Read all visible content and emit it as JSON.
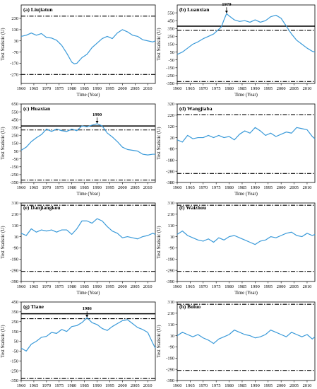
{
  "figure": {
    "xlabel": "Time (Year)",
    "ylabel": "Test Statistic (U)",
    "line_color": "#3a9ad9"
  },
  "chart_data": [
    {
      "type": "line",
      "panel": "a",
      "title": "(a) Liujiatun",
      "xlabel": "Time (Year)",
      "ylabel": "Test Statistic (U)",
      "xlim": [
        1960,
        2013
      ],
      "ylim": [
        -350,
        350
      ],
      "yticks": [
        -270,
        -170,
        -70,
        30,
        130,
        230
      ],
      "xticks": [
        1960,
        1965,
        1970,
        1975,
        1980,
        1985,
        1990,
        1995,
        2000,
        2005,
        2010
      ],
      "thresholds": {
        "solid": null,
        "dashdot": [
          250,
          -270
        ]
      },
      "annotation": null,
      "x": [
        1960,
        1962,
        1964,
        1966,
        1968,
        1970,
        1972,
        1974,
        1976,
        1978,
        1980,
        1981,
        1982,
        1984,
        1986,
        1988,
        1990,
        1992,
        1994,
        1996,
        1998,
        2000,
        2002,
        2004,
        2006,
        2008,
        2010,
        2012,
        2013
      ],
      "values": [
        70,
        80,
        100,
        80,
        95,
        60,
        55,
        35,
        -10,
        -80,
        -160,
        -175,
        -170,
        -120,
        -90,
        -30,
        10,
        50,
        70,
        50,
        100,
        130,
        110,
        80,
        70,
        40,
        30,
        20,
        30
      ]
    },
    {
      "type": "line",
      "panel": "b",
      "title": "(b) Luanxian",
      "xlabel": "Time (Year)",
      "ylabel": "Test Statistic (U)",
      "xlim": [
        1960,
        2013
      ],
      "ylim": [
        -350,
        650
      ],
      "yticks": [
        -350,
        -250,
        -150,
        -50,
        50,
        150,
        250,
        350,
        450,
        550
      ],
      "xticks": [
        1960,
        1965,
        1970,
        1975,
        1980,
        1985,
        1990,
        1995,
        2000,
        2005,
        2010
      ],
      "thresholds": {
        "solid": 380,
        "dashdot": [
          326,
          -326
        ]
      },
      "annotation": {
        "label": "1979",
        "x": 1979,
        "y": 540
      },
      "x": [
        1960,
        1962,
        1964,
        1966,
        1968,
        1970,
        1972,
        1974,
        1976,
        1977,
        1978,
        1979,
        1980,
        1982,
        1984,
        1986,
        1988,
        1990,
        1992,
        1994,
        1996,
        1998,
        2000,
        2002,
        2004,
        2006,
        2008,
        2010,
        2012,
        2013
      ],
      "values": [
        20,
        50,
        100,
        150,
        180,
        220,
        250,
        280,
        340,
        370,
        460,
        540,
        510,
        460,
        440,
        450,
        430,
        460,
        430,
        450,
        500,
        520,
        480,
        380,
        280,
        200,
        150,
        100,
        60,
        50
      ]
    },
    {
      "type": "line",
      "panel": "c",
      "title": "(c) Huaxian",
      "xlabel": "Time (Year)",
      "ylabel": "Test Statistic (U)",
      "xlim": [
        1960,
        2013
      ],
      "ylim": [
        -350,
        650
      ],
      "yticks": [
        -350,
        -250,
        -150,
        -50,
        50,
        150,
        250,
        350,
        450,
        550,
        650
      ],
      "xticks": [
        1960,
        1965,
        1970,
        1975,
        1980,
        1985,
        1990,
        1995,
        2000,
        2005,
        2010
      ],
      "thresholds": {
        "solid": 370,
        "dashdot": [
          319,
          -319
        ]
      },
      "annotation": {
        "label": "1990",
        "x": 1990,
        "y": 398
      },
      "x": [
        1960,
        1962,
        1964,
        1966,
        1968,
        1970,
        1972,
        1974,
        1976,
        1978,
        1980,
        1982,
        1984,
        1986,
        1988,
        1990,
        1992,
        1994,
        1996,
        1998,
        2000,
        2002,
        2004,
        2006,
        2008,
        2010,
        2012,
        2013
      ],
      "values": [
        60,
        100,
        170,
        220,
        260,
        330,
        300,
        330,
        310,
        300,
        330,
        310,
        370,
        360,
        380,
        398,
        370,
        280,
        230,
        170,
        100,
        70,
        60,
        50,
        10,
        0,
        10,
        10
      ]
    },
    {
      "type": "line",
      "panel": "d",
      "title": "(d) Wangjiaba",
      "xlabel": "Time (Year)",
      "ylabel": "Test Statistic (U)",
      "xlim": [
        1960,
        2013
      ],
      "ylim": [
        -380,
        320
      ],
      "yticks": [
        -380,
        -280,
        -180,
        -80,
        20,
        120,
        220,
        320
      ],
      "xticks": [
        1960,
        1965,
        1970,
        1975,
        1980,
        1985,
        1990,
        1995,
        2000,
        2005,
        2010
      ],
      "thresholds": {
        "solid": null,
        "dashdot": [
          225,
          -300
        ]
      },
      "annotation": null,
      "x": [
        1960,
        1962,
        1964,
        1966,
        1968,
        1970,
        1972,
        1974,
        1976,
        1978,
        1980,
        1982,
        1984,
        1986,
        1988,
        1990,
        1992,
        1994,
        1996,
        1998,
        2000,
        2002,
        2004,
        2006,
        2008,
        2010,
        2012,
        2013
      ],
      "values": [
        0,
        -20,
        40,
        10,
        20,
        20,
        40,
        20,
        40,
        20,
        30,
        0,
        50,
        80,
        60,
        110,
        80,
        40,
        60,
        30,
        50,
        70,
        60,
        110,
        100,
        90,
        30,
        10
      ]
    },
    {
      "type": "line",
      "panel": "e",
      "title": "(e) Danjiangkou",
      "xlabel": "Time (Year)",
      "ylabel": "Test Statistic (U)",
      "xlim": [
        1960,
        2013
      ],
      "ylim": [
        -390,
        310
      ],
      "yticks": [
        -390,
        -290,
        -190,
        -90,
        10,
        110,
        210,
        310
      ],
      "xticks": [
        1960,
        1965,
        1970,
        1975,
        1980,
        1985,
        1990,
        1995,
        2000,
        2005,
        2010
      ],
      "thresholds": {
        "solid": null,
        "dashdot": [
          290,
          -300
        ]
      },
      "annotation": null,
      "x": [
        1960,
        1962,
        1964,
        1966,
        1968,
        1970,
        1972,
        1974,
        1976,
        1978,
        1980,
        1982,
        1984,
        1986,
        1988,
        1990,
        1992,
        1994,
        1996,
        1998,
        2000,
        2002,
        2004,
        2006,
        2008,
        2010,
        2012,
        2013
      ],
      "values": [
        40,
        20,
        80,
        50,
        70,
        60,
        70,
        50,
        70,
        70,
        30,
        80,
        150,
        150,
        130,
        170,
        150,
        100,
        60,
        40,
        0,
        10,
        0,
        -10,
        10,
        20,
        40,
        30
      ]
    },
    {
      "type": "line",
      "panel": "f",
      "title": "(f) Waizhou",
      "xlabel": "Time (Year)",
      "ylabel": "Test Statistic (U)",
      "xlim": [
        1960,
        2013
      ],
      "ylim": [
        -390,
        310
      ],
      "yticks": [
        -390,
        -290,
        -190,
        -90,
        10,
        110,
        210,
        310
      ],
      "xticks": [
        1960,
        1965,
        1970,
        1975,
        1980,
        1985,
        1990,
        1995,
        2000,
        2005,
        2010
      ],
      "thresholds": {
        "solid": null,
        "dashdot": [
          290,
          -300
        ]
      },
      "annotation": null,
      "x": [
        1960,
        1962,
        1964,
        1966,
        1968,
        1970,
        1972,
        1974,
        1976,
        1978,
        1980,
        1982,
        1984,
        1986,
        1988,
        1990,
        1992,
        1994,
        1996,
        1998,
        2000,
        2002,
        2004,
        2006,
        2008,
        2010,
        2012,
        2013
      ],
      "values": [
        30,
        60,
        20,
        0,
        -20,
        -30,
        -10,
        -40,
        0,
        -20,
        10,
        20,
        0,
        -20,
        -40,
        -60,
        -30,
        -20,
        10,
        0,
        20,
        40,
        50,
        20,
        10,
        40,
        20,
        30
      ]
    },
    {
      "type": "line",
      "panel": "g",
      "title": "(g) Tiane",
      "xlabel": "Time (Year)",
      "ylabel": "Test Statistic (U)",
      "xlim": [
        1960,
        2013
      ],
      "ylim": [
        -350,
        450
      ],
      "yticks": [
        -350,
        -250,
        -150,
        -50,
        50,
        150,
        250,
        350,
        450
      ],
      "xticks": [
        1960,
        1965,
        1970,
        1975,
        1980,
        1985,
        1990,
        1995,
        2000,
        2005,
        2010
      ],
      "thresholds": {
        "solid": 330,
        "dashdot": [
          280,
          -330
        ]
      },
      "annotation": {
        "label": "1986",
        "x": 1986,
        "y": 290
      },
      "x": [
        1960,
        1962,
        1964,
        1966,
        1968,
        1970,
        1972,
        1974,
        1976,
        1978,
        1980,
        1982,
        1984,
        1986,
        1988,
        1990,
        1992,
        1994,
        1996,
        1998,
        2000,
        2002,
        2004,
        2006,
        2008,
        2010,
        2012,
        2013
      ],
      "values": [
        -20,
        -50,
        20,
        50,
        90,
        100,
        140,
        130,
        170,
        150,
        200,
        210,
        240,
        290,
        240,
        220,
        180,
        160,
        200,
        230,
        260,
        270,
        230,
        190,
        170,
        140,
        30,
        -20
      ]
    },
    {
      "type": "line",
      "panel": "h",
      "title": "(h) Boluo",
      "xlabel": "Time (Year)",
      "ylabel": "Test Statistic (U)",
      "xlim": [
        1960,
        2013
      ],
      "ylim": [
        -390,
        310
      ],
      "yticks": [
        -390,
        -290,
        -190,
        -90,
        10,
        110,
        210,
        310
      ],
      "xticks": [
        1960,
        1965,
        1970,
        1975,
        1980,
        1985,
        1990,
        1995,
        2000,
        2005,
        2010
      ],
      "thresholds": {
        "solid": null,
        "dashdot": [
          290,
          -300
        ]
      },
      "annotation": null,
      "x": [
        1960,
        1962,
        1964,
        1966,
        1968,
        1970,
        1972,
        1974,
        1976,
        1978,
        1980,
        1982,
        1984,
        1986,
        1988,
        1990,
        1992,
        1994,
        1996,
        1998,
        2000,
        2002,
        2004,
        2006,
        2008,
        2010,
        2012,
        2013
      ],
      "values": [
        10,
        40,
        20,
        0,
        20,
        -10,
        -30,
        -60,
        -20,
        0,
        20,
        60,
        40,
        20,
        10,
        -10,
        0,
        20,
        60,
        40,
        20,
        0,
        40,
        20,
        0,
        20,
        -20,
        0
      ]
    }
  ]
}
